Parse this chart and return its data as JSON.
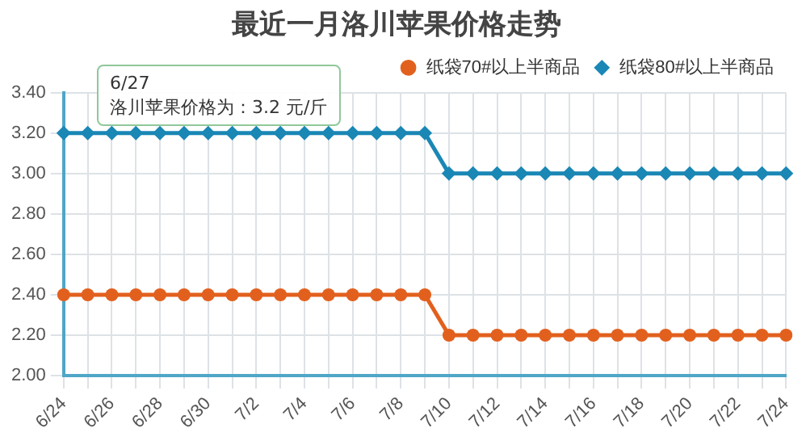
{
  "chart_data": {
    "type": "line",
    "title": "最近一月洛川苹果价格走势",
    "categories": [
      "6/24",
      null,
      "6/26",
      null,
      "6/28",
      null,
      "6/30",
      null,
      "7/2",
      null,
      "7/4",
      null,
      "7/6",
      null,
      "7/8",
      null,
      "7/10",
      null,
      "7/12",
      null,
      "7/14",
      null,
      "7/16",
      null,
      "7/18",
      null,
      "7/20",
      null,
      "7/22",
      null,
      "7/24"
    ],
    "series": [
      {
        "name": "纸袋70#以上半商品",
        "color": "#e2601e",
        "marker": "circle",
        "values": [
          2.4,
          2.4,
          2.4,
          2.4,
          2.4,
          2.4,
          2.4,
          2.4,
          2.4,
          2.4,
          2.4,
          2.4,
          2.4,
          2.4,
          2.4,
          2.4,
          2.2,
          2.2,
          2.2,
          2.2,
          2.2,
          2.2,
          2.2,
          2.2,
          2.2,
          2.2,
          2.2,
          2.2,
          2.2,
          2.2,
          2.2
        ]
      },
      {
        "name": "纸袋80#以上半商品",
        "color": "#1a87b5",
        "marker": "diamond",
        "values": [
          3.2,
          3.2,
          3.2,
          3.2,
          3.2,
          3.2,
          3.2,
          3.2,
          3.2,
          3.2,
          3.2,
          3.2,
          3.2,
          3.2,
          3.2,
          3.2,
          3.0,
          3.0,
          3.0,
          3.0,
          3.0,
          3.0,
          3.0,
          3.0,
          3.0,
          3.0,
          3.0,
          3.0,
          3.0,
          3.0,
          3.0
        ]
      }
    ],
    "ylim": [
      2.0,
      3.4
    ],
    "yticks": [
      {
        "value": 2.0,
        "label": "2.00"
      },
      {
        "value": 2.2,
        "label": "2.20"
      },
      {
        "value": 2.4,
        "label": "2.40"
      },
      {
        "value": 2.6,
        "label": "2.60"
      },
      {
        "value": 2.8,
        "label": "2.80"
      },
      {
        "value": 3.0,
        "label": "3.00"
      },
      {
        "value": 3.2,
        "label": "3.20"
      },
      {
        "value": 3.4,
        "label": "3.40"
      }
    ],
    "grid": true,
    "legend": "top right",
    "annotations": [
      "6/27",
      "洛川苹果价格为：3.2 元/斤"
    ]
  }
}
